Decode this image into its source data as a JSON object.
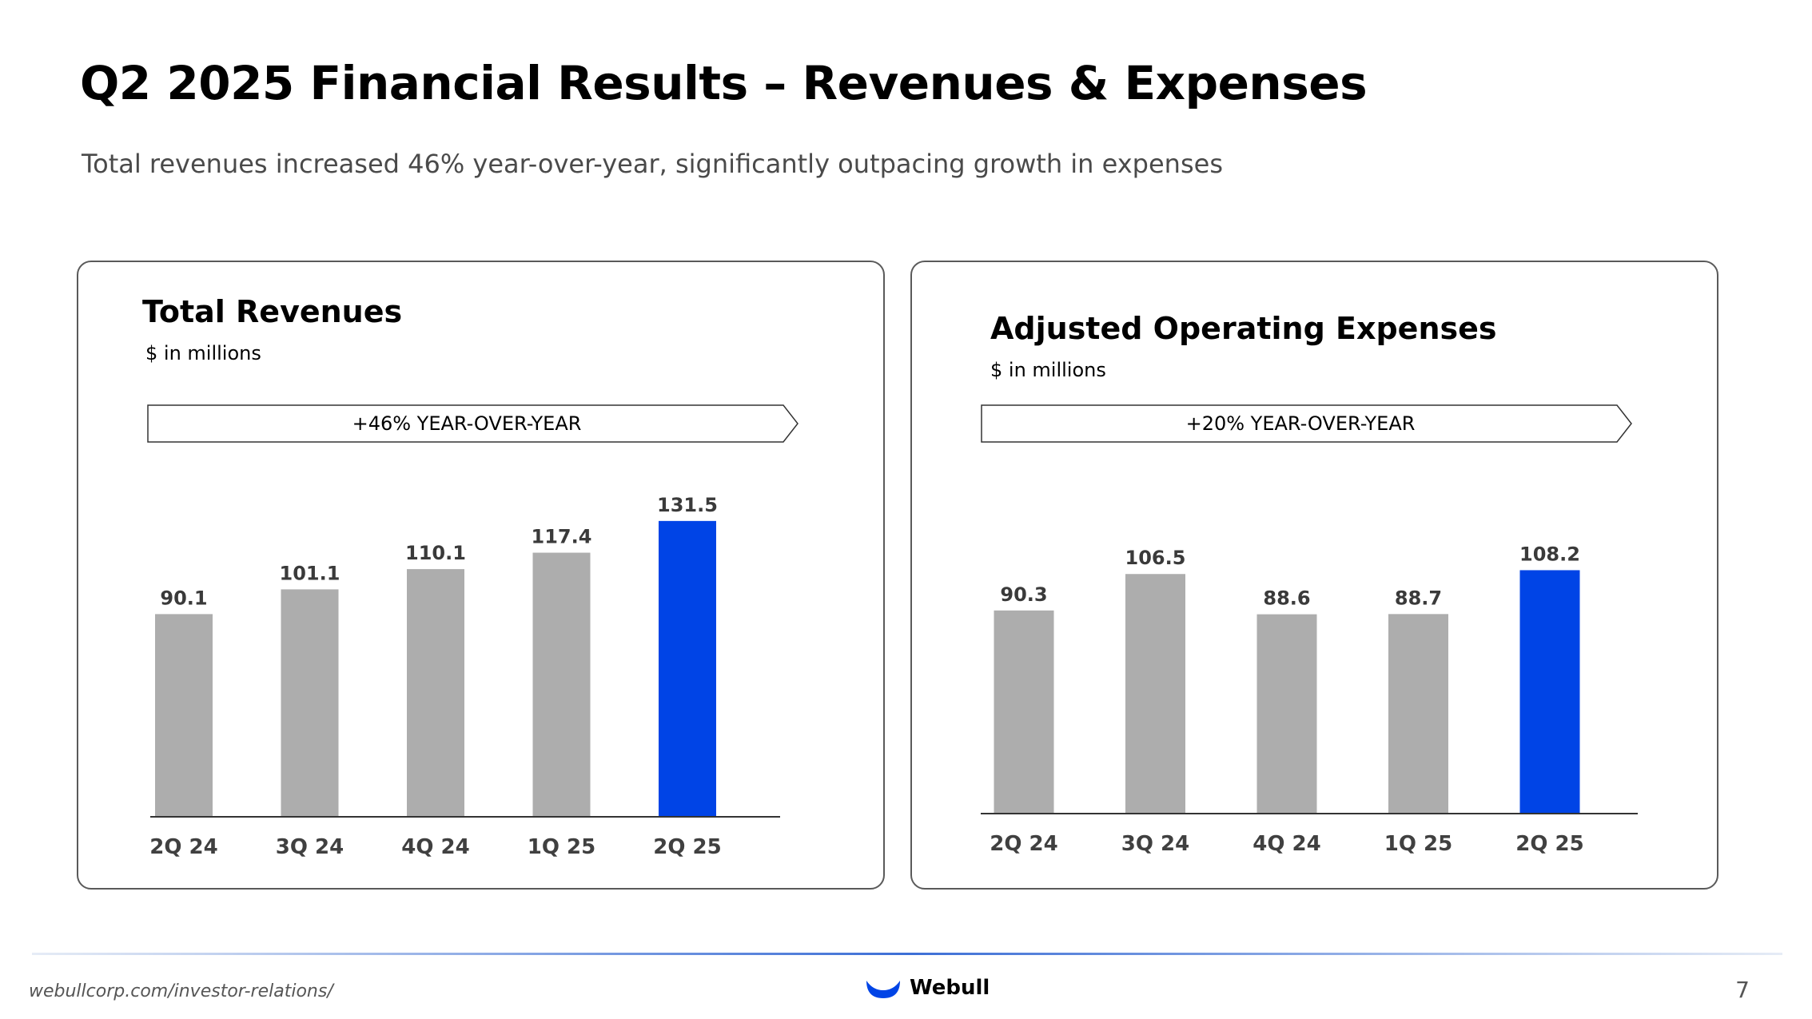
{
  "header": {
    "title": "Q2 2025 Financial Results – Revenues & Expenses",
    "subtitle": "Total revenues increased 46% year-over-year, significantly outpacing growth in expenses"
  },
  "colors": {
    "bar_default": "#adadad",
    "bar_highlight": "#0044e6",
    "axis": "#333333"
  },
  "chart_data": [
    {
      "type": "bar",
      "title": "Total Revenues",
      "unit": "$ in millions",
      "callout": "+46% YEAR-OVER-YEAR",
      "categories": [
        "2Q 24",
        "3Q 24",
        "4Q 24",
        "1Q 25",
        "2Q 25"
      ],
      "values": [
        90.1,
        101.1,
        110.1,
        117.4,
        131.5
      ],
      "value_labels": [
        "90.1",
        "101.1",
        "110.1",
        "117.4",
        "131.5"
      ],
      "highlight_index": 4,
      "ylim": [
        0,
        135
      ],
      "xlabel": "",
      "ylabel": ""
    },
    {
      "type": "bar",
      "title": "Adjusted Operating Expenses",
      "unit": "$ in millions",
      "callout": "+20% YEAR-OVER-YEAR",
      "categories": [
        "2Q 24",
        "3Q 24",
        "4Q 24",
        "1Q 25",
        "2Q 25"
      ],
      "values": [
        90.3,
        106.5,
        88.6,
        88.7,
        108.2
      ],
      "value_labels": [
        "90.3",
        "106.5",
        "88.6",
        "88.7",
        "108.2"
      ],
      "highlight_index": 4,
      "ylim": [
        0,
        135
      ],
      "xlabel": "",
      "ylabel": ""
    }
  ],
  "footer": {
    "url": "webullcorp.com/investor-relations/",
    "brand": "Webull",
    "page_number": "7"
  }
}
